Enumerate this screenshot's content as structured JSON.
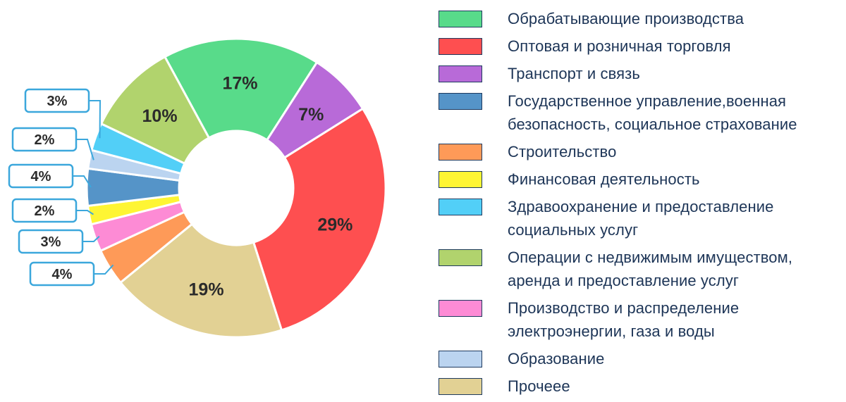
{
  "chart_data": {
    "type": "donut",
    "slices": [
      {
        "label": "Обрабатывающие производства",
        "value": 17,
        "text": "17%",
        "color": "#58db8a"
      },
      {
        "label": "Транспорт и связь",
        "value": 7,
        "text": "7%",
        "color": "#b86ad8"
      },
      {
        "label": "Оптовая и розничная торговля",
        "value": 29,
        "text": "29%",
        "color": "#fe4f50"
      },
      {
        "label": "Прочеее",
        "value": 19,
        "text": "19%",
        "color": "#e2d194"
      },
      {
        "label": "Строительство",
        "value": 4,
        "text": "4%",
        "color": "#fe9a58"
      },
      {
        "label": "Производство и распределение электроэнергии, газа и воды",
        "value": 3,
        "text": "3%",
        "color": "#fd8bd5"
      },
      {
        "label": "Финансовая деятельность",
        "value": 2,
        "text": "2%",
        "color": "#fef534"
      },
      {
        "label": "Государственное управление,военная безопасность, социальное страхование",
        "value": 4,
        "text": "4%",
        "color": "#5594c8"
      },
      {
        "label": "Образование",
        "value": 2,
        "text": "2%",
        "color": "#bbd4f0"
      },
      {
        "label": "Здравоохранение и предоставление социальных услуг",
        "value": 3,
        "text": "3%",
        "color": "#52cff7"
      },
      {
        "label": "Операции с недвижимым имуществом, аренда и предоставление услуг",
        "value": 10,
        "text": "10%",
        "color": "#b1d36d"
      }
    ],
    "legend": [
      {
        "label": "Обрабатывающие производства",
        "color": "#58db8a"
      },
      {
        "label": "Оптовая и розничная торговля",
        "color": "#fe4f50"
      },
      {
        "label": "Транспорт и связь",
        "color": "#b86ad8"
      },
      {
        "label": "Государственное управление,военная безопасность, социальное страхование",
        "color": "#5594c8"
      },
      {
        "label": "Строительство",
        "color": "#fe9a58"
      },
      {
        "label": "Финансовая деятельность",
        "color": "#fef534"
      },
      {
        "label": "Здравоохранение и предоставление социальных услуг",
        "color": "#52cff7"
      },
      {
        "label": "Операции с недвижимым имуществом, аренда и предоставление услуг",
        "color": "#b1d36d"
      },
      {
        "label": "Производство и распределение электроэнергии, газа и воды",
        "color": "#fd8bd5"
      },
      {
        "label": "Образование",
        "color": "#bbd4f0"
      },
      {
        "label": "Прочеее",
        "color": "#e2d194"
      }
    ],
    "legend_placement": "right",
    "callout_color": "#3ba7dc"
  }
}
